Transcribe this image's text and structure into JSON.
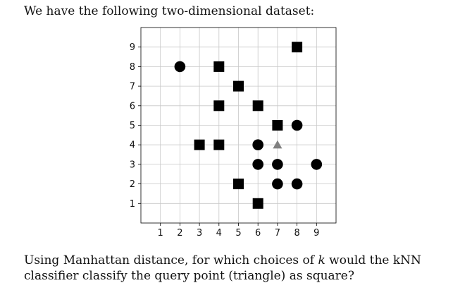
{
  "intro_text": "We have the following two-dimensional dataset:",
  "question": {
    "part1": "Using Manhattan distance, for which choices of ",
    "k": "k",
    "part2": " would the kNN classifier classify the query point (triangle) as square?"
  },
  "chart_data": {
    "type": "scatter",
    "title": "",
    "xlabel": "",
    "ylabel": "",
    "xlim": [
      0,
      10
    ],
    "ylim": [
      0,
      10
    ],
    "x_ticks": [
      1,
      2,
      3,
      4,
      5,
      6,
      7,
      8,
      9
    ],
    "y_ticks": [
      1,
      2,
      3,
      4,
      5,
      6,
      7,
      8,
      9
    ],
    "grid": true,
    "series": [
      {
        "marker": "square",
        "color": "#000000",
        "points": [
          [
            8,
            9
          ],
          [
            4,
            8
          ],
          [
            5,
            7
          ],
          [
            4,
            6
          ],
          [
            6,
            6
          ],
          [
            7,
            5
          ],
          [
            3,
            4
          ],
          [
            4,
            4
          ],
          [
            5,
            2
          ],
          [
            6,
            1
          ]
        ]
      },
      {
        "marker": "circle",
        "color": "#000000",
        "points": [
          [
            2,
            8
          ],
          [
            8,
            5
          ],
          [
            6,
            4
          ],
          [
            6,
            3
          ],
          [
            7,
            3
          ],
          [
            9,
            3
          ],
          [
            7,
            2
          ],
          [
            8,
            2
          ]
        ]
      },
      {
        "marker": "triangle",
        "color": "#808080",
        "points": [
          [
            7,
            4
          ]
        ]
      }
    ]
  }
}
